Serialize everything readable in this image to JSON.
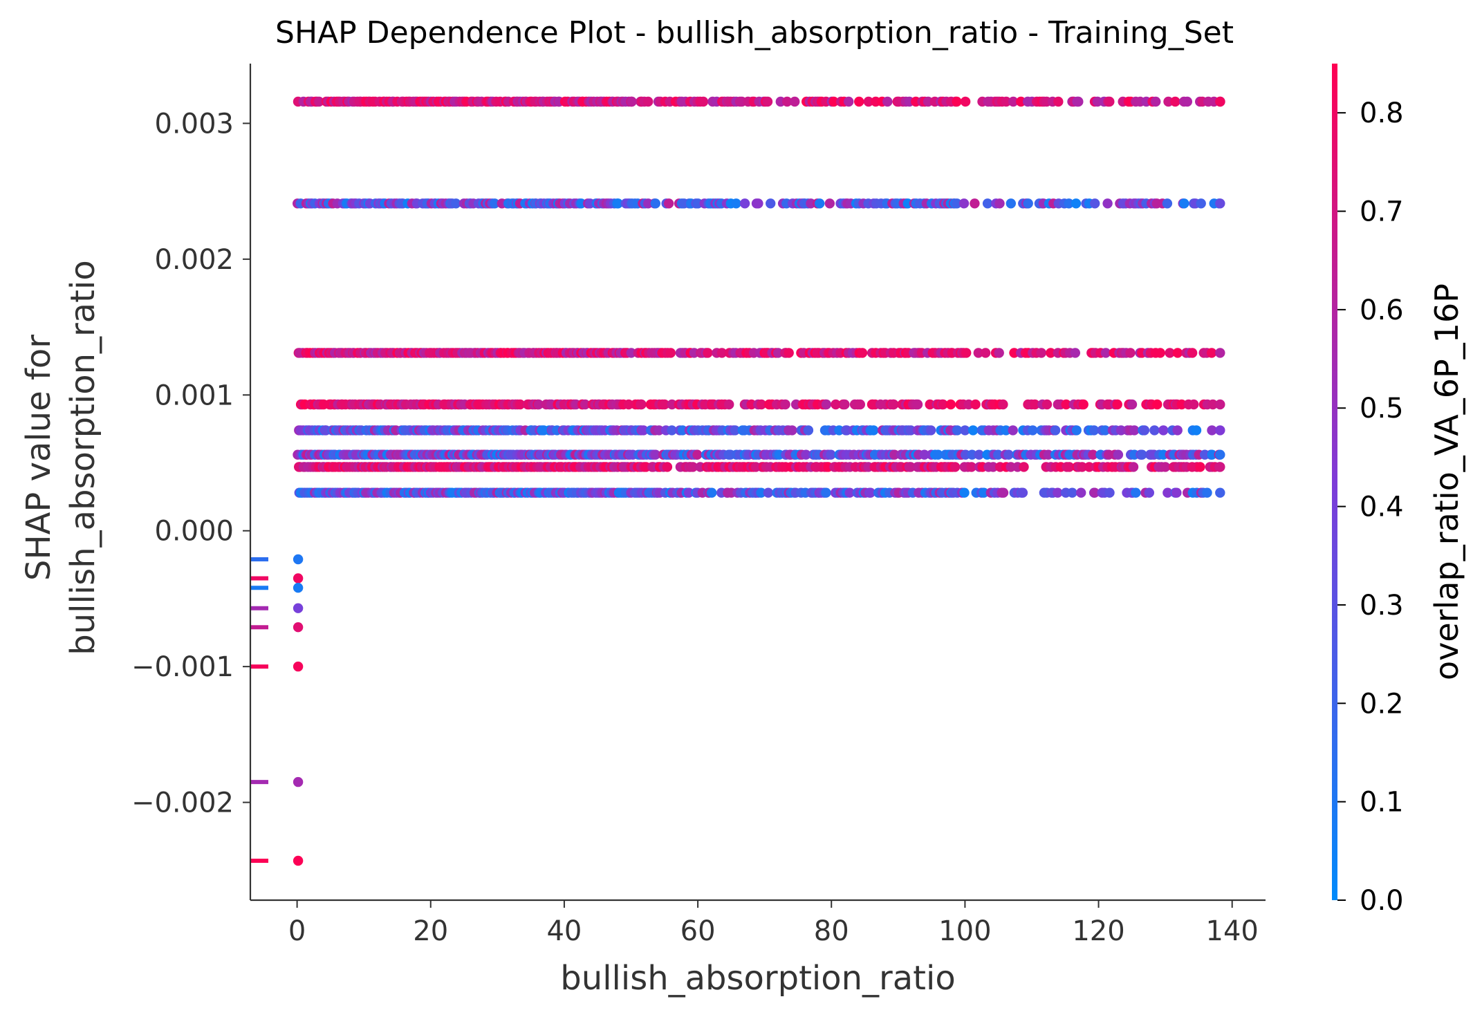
{
  "chart_data": {
    "type": "scatter",
    "title": "SHAP Dependence Plot - bullish_absorption_ratio - Training_Set",
    "xlabel": "bullish_absorption_ratio",
    "ylabel_line1": "SHAP value for",
    "ylabel_line2": "bullish_absorption_ratio",
    "colorbar_label": "overlap_ratio_VA_6P_16P",
    "xlim": [
      -7,
      145
    ],
    "ylim": [
      -0.00272,
      0.00344
    ],
    "x_ticks": [
      0,
      20,
      40,
      60,
      80,
      100,
      120,
      140
    ],
    "x_tick_labels": [
      "0",
      "20",
      "40",
      "60",
      "80",
      "100",
      "120",
      "140"
    ],
    "y_ticks": [
      -0.002,
      -0.001,
      0.0,
      0.001,
      0.002,
      0.003
    ],
    "y_tick_labels": [
      "−0.002",
      "−0.001",
      "0.000",
      "0.001",
      "0.002",
      "0.003"
    ],
    "colorbar_range": [
      0.0,
      0.85
    ],
    "colorbar_ticks": [
      0.0,
      0.1,
      0.2,
      0.3,
      0.4,
      0.5,
      0.6,
      0.7,
      0.8
    ],
    "colorbar_tick_labels": [
      "0.0",
      "0.1",
      "0.2",
      "0.3",
      "0.4",
      "0.5",
      "0.6",
      "0.7",
      "0.8"
    ],
    "colormap": [
      "#008afb",
      "#7e3bd8",
      "#ff0052"
    ],
    "x_max": 138.2,
    "bands": [
      {
        "y": 0.00316,
        "color_lo": 0.55,
        "color_hi": 0.85,
        "density": 0.85
      },
      {
        "y": 0.00241,
        "color_lo": 0.05,
        "color_hi": 0.65,
        "density": 0.85
      },
      {
        "y": 0.00131,
        "color_lo": 0.55,
        "color_hi": 0.85,
        "density": 1.0
      },
      {
        "y": 0.00093,
        "color_lo": 0.6,
        "color_hi": 0.85,
        "density": 0.8
      },
      {
        "y": 0.00074,
        "color_lo": 0.05,
        "color_hi": 0.6,
        "density": 0.9
      },
      {
        "y": 0.00056,
        "color_lo": 0.05,
        "color_hi": 0.65,
        "density": 1.0
      },
      {
        "y": 0.00047,
        "color_lo": 0.6,
        "color_hi": 0.85,
        "density": 1.0
      },
      {
        "y": 0.00028,
        "color_lo": 0.05,
        "color_hi": 0.6,
        "density": 1.0
      }
    ],
    "zero_x_points": [
      {
        "x": 0.15,
        "y": -0.00021,
        "c": 0.1
      },
      {
        "x": 0.15,
        "y": -0.00035,
        "c": 0.8
      },
      {
        "x": 0.15,
        "y": -0.00042,
        "c": 0.08
      },
      {
        "x": 0.15,
        "y": -0.00057,
        "c": 0.4
      },
      {
        "x": 0.15,
        "y": -0.00071,
        "c": 0.75
      },
      {
        "x": 0.15,
        "y": -0.001,
        "c": 0.82
      },
      {
        "x": 0.15,
        "y": -0.00185,
        "c": 0.55
      },
      {
        "x": 0.15,
        "y": -0.00243,
        "c": 0.84
      }
    ],
    "rug_marks": [
      {
        "y": -0.00021,
        "c": 0.15
      },
      {
        "y": -0.00035,
        "c": 0.8
      },
      {
        "y": -0.00042,
        "c": 0.08
      },
      {
        "y": -0.00057,
        "c": 0.55
      },
      {
        "y": -0.00071,
        "c": 0.65
      },
      {
        "y": -0.001,
        "c": 0.82
      },
      {
        "y": -0.00185,
        "c": 0.55
      },
      {
        "y": -0.00243,
        "c": 0.84
      }
    ]
  }
}
